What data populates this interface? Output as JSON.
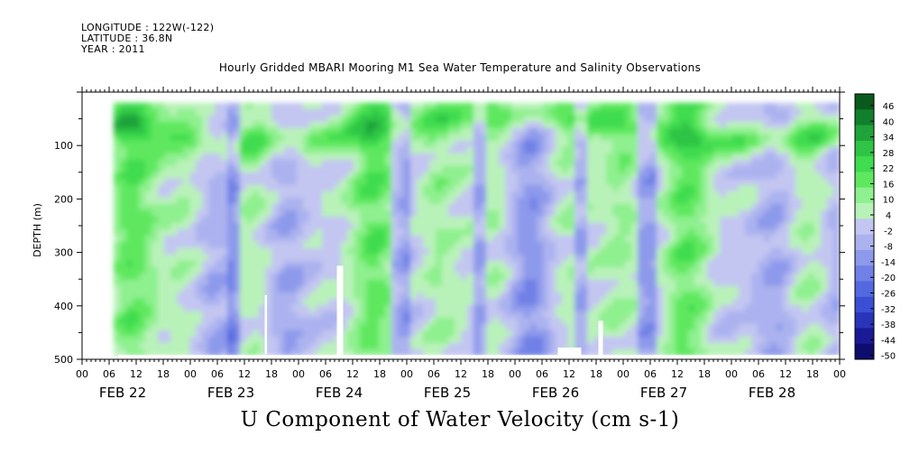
{
  "header": {
    "longitude": "LONGITUDE : 122W(-122)",
    "latitude": "LATITUDE : 36.8N",
    "year": "YEAR : 2011",
    "title": "Hourly Gridded MBARI Mooring M1 Sea Water Temperature and Salinity Observations"
  },
  "chart_data": {
    "type": "heatmap",
    "title": "Hourly Gridded MBARI Mooring M1 Sea Water Temperature and Salinity Observations",
    "xlabel": "U Component of Water Velocity (cm s-1)",
    "ylabel": "DEPTH (m)",
    "x_hour_ticks": [
      "00",
      "06",
      "12",
      "18",
      "00",
      "06",
      "12",
      "18",
      "00",
      "06",
      "12",
      "18",
      "00",
      "06",
      "12",
      "18",
      "00",
      "06",
      "12",
      "18",
      "00",
      "06",
      "12",
      "18",
      "00",
      "06",
      "12",
      "18",
      "00"
    ],
    "x_day_labels": [
      "FEB 22",
      "FEB 23",
      "FEB 24",
      "FEB 25",
      "FEB 26",
      "FEB 27",
      "FEB 28"
    ],
    "xlim_hours": [
      0,
      168
    ],
    "data_x_range_hours": [
      7,
      168
    ],
    "ylim": [
      500,
      0
    ],
    "y_ticks": [
      100,
      200,
      300,
      400,
      500
    ],
    "data_depth_range": [
      20,
      490
    ],
    "colorbar_levels": [
      -50,
      -44,
      -38,
      -32,
      -26,
      -20,
      -14,
      -8,
      -2,
      4,
      10,
      16,
      22,
      28,
      34,
      40,
      46
    ],
    "colorbar_labels": [
      "46",
      "40",
      "34",
      "28",
      "22",
      "16",
      "10",
      "4",
      "-2",
      "-8",
      "-14",
      "-20",
      "-26",
      "-32",
      "-38",
      "-44",
      "-50"
    ],
    "colors": {
      "level_fills": [
        "#0d0d6e",
        "#1a1a96",
        "#2a34b8",
        "#3b4fd6",
        "#5468e0",
        "#6f80e6",
        "#8d99eb",
        "#abb2ef",
        "#c3c6f1",
        "#b9f2b9",
        "#8ef08e",
        "#5fe85f",
        "#3fdc4f",
        "#2fc445",
        "#1fa33a",
        "#10802c",
        "#0a5a1e"
      ]
    },
    "grid": false,
    "note_blank_columns": "missing data near FEB 23 12, FEB 24 12 and FEB 25 18 to FEB 26 00"
  }
}
